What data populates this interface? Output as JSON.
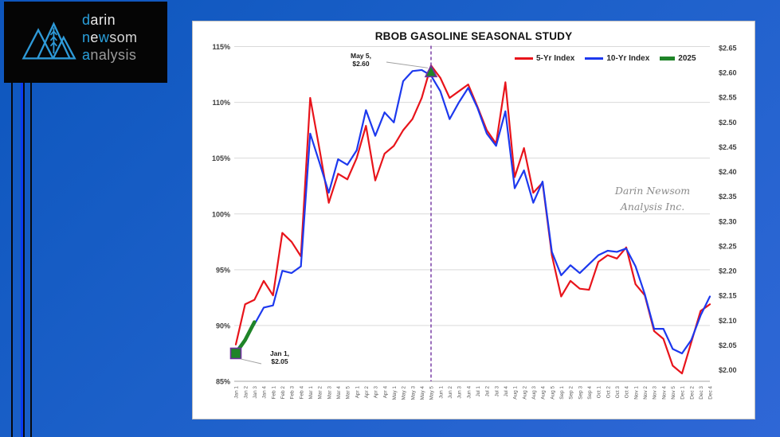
{
  "logo": {
    "lines": [
      {
        "segments": [
          {
            "t": "d",
            "c": "#2aa0dc"
          },
          {
            "t": "arin",
            "c": "#e9e9e9"
          }
        ]
      },
      {
        "segments": [
          {
            "t": "n",
            "c": "#2aa0dc"
          },
          {
            "t": "e",
            "c": "#e9e9e9"
          },
          {
            "t": "w",
            "c": "#2aa0dc"
          },
          {
            "t": "som",
            "c": "#d4d4d4"
          }
        ]
      },
      {
        "segments": [
          {
            "t": "a",
            "c": "#2aa0dc"
          },
          {
            "t": "nalysis",
            "c": "#9b9b9b"
          }
        ]
      }
    ]
  },
  "watermark": {
    "line1": "Darin Newsom",
    "line2": "Analysis Inc."
  },
  "chart_data": {
    "type": "line",
    "title": "RBOB GASOLINE SEASONAL STUDY",
    "grid": true,
    "legend_position": "top-right",
    "categories": [
      "Jan 1",
      "Jan 2",
      "Jan 3",
      "Jan 4",
      "Feb 1",
      "Feb 2",
      "Feb 3",
      "Feb 4",
      "Mar 1",
      "Mar 2",
      "Mar 3",
      "Mar 4",
      "Mar 5",
      "Apr 1",
      "Apr 2",
      "Apr 3",
      "Apr 4",
      "May 1",
      "May 2",
      "May 3",
      "May 4",
      "May 5",
      "Jun 1",
      "Jun 2",
      "Jun 3",
      "Jun 4",
      "Jul 1",
      "Jul 2",
      "Jul 3",
      "Jul 4",
      "Aug 1",
      "Aug 2",
      "Aug 3",
      "Aug 4",
      "Aug 5",
      "Sep 1",
      "Sep 2",
      "Sep 3",
      "Sep 4",
      "Oct 1",
      "Oct 2",
      "Oct 3",
      "Oct 4",
      "Nov 1",
      "Nov 2",
      "Nov 3",
      "Nov 4",
      "Nov 5",
      "Dec 1",
      "Dec 2",
      "Dec 3",
      "Dec 4"
    ],
    "series": [
      {
        "name": "5-Yr Index",
        "color": "#e8141b",
        "values": [
          88.3,
          91.9,
          92.3,
          94.0,
          92.7,
          98.3,
          97.5,
          96.2,
          110.4,
          105.8,
          101.0,
          103.6,
          103.1,
          105.0,
          107.9,
          103.0,
          105.4,
          106.1,
          107.5,
          108.5,
          110.4,
          113.3,
          112.2,
          110.4,
          111.0,
          111.6,
          109.6,
          107.5,
          106.3,
          111.8,
          103.3,
          105.9,
          101.9,
          102.8,
          96.3,
          92.6,
          94.0,
          93.3,
          93.2,
          95.7,
          96.3,
          96.0,
          97.0,
          93.7,
          92.7,
          89.5,
          88.8,
          86.4,
          85.7,
          88.5,
          91.3,
          91.9
        ]
      },
      {
        "name": "10-Yr Index",
        "color": "#1d39ee",
        "values": [
          87.7,
          88.8,
          90.1,
          91.6,
          91.8,
          94.9,
          94.7,
          95.3,
          107.2,
          104.6,
          101.9,
          104.9,
          104.4,
          105.7,
          109.3,
          107.0,
          109.1,
          108.2,
          111.9,
          112.8,
          112.9,
          112.4,
          111.0,
          108.5,
          110.0,
          111.3,
          109.5,
          107.2,
          106.1,
          109.2,
          102.3,
          103.9,
          101.0,
          102.9,
          96.6,
          94.5,
          95.4,
          94.7,
          95.5,
          96.3,
          96.7,
          96.6,
          96.9,
          95.3,
          92.8,
          89.7,
          89.7,
          87.9,
          87.5,
          88.7,
          90.9,
          92.6
        ]
      },
      {
        "name": "2025",
        "color": "#1f8428",
        "values": [
          87.5,
          88.7,
          90.3
        ]
      }
    ],
    "left_axis": {
      "min": 85,
      "max": 115,
      "tick_values": [
        115,
        110,
        105,
        100,
        95,
        90,
        85
      ],
      "tick_labels": [
        "115%",
        "110%",
        "105%",
        "100%",
        "95%",
        "90%",
        "85%"
      ]
    },
    "right_axis": {
      "min": 2.0,
      "max": 2.65,
      "tick_values": [
        2.65,
        2.6,
        2.55,
        2.5,
        2.45,
        2.4,
        2.35,
        2.3,
        2.25,
        2.2,
        2.15,
        2.1,
        2.05,
        2.0
      ],
      "tick_labels": [
        "$2.65",
        "$2.60",
        "$2.55",
        "$2.50",
        "$2.45",
        "$2.40",
        "$2.35",
        "$2.30",
        "$2.25",
        "$2.20",
        "$2.15",
        "$2.10",
        "$2.05",
        "$2.00"
      ]
    },
    "vline_week_index": 21,
    "vline_color": "#7030a0",
    "markers": [
      {
        "shape": "square",
        "week": 0,
        "value": 87.5,
        "fill": "#1f8428",
        "stroke": "#7030a0"
      },
      {
        "shape": "triangle",
        "week": 21,
        "value": 112.8,
        "fill": "#1f8428",
        "stroke": "#7030a0"
      }
    ],
    "annotations": [
      {
        "lines": [
          "May 5,",
          "$2.60"
        ],
        "target_week": 21
      },
      {
        "lines": [
          "Jan 1,",
          "$2.05"
        ],
        "target_week": 0
      }
    ]
  }
}
